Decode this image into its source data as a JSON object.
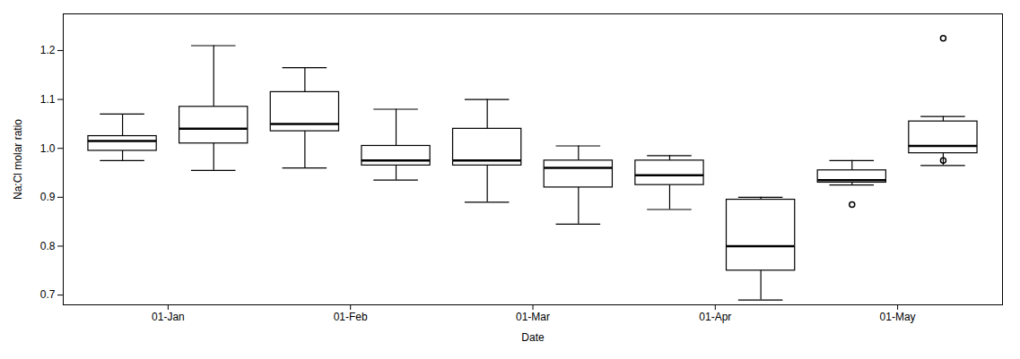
{
  "chart_data": {
    "type": "box",
    "xlabel": "Date",
    "ylabel": "Na:Cl molar ratio",
    "x": [
      1.5,
      2.5,
      3.5,
      4.5,
      5.5,
      6.5,
      7.5,
      8.5,
      9.5,
      10.5
    ],
    "boxes": [
      {
        "whislo": 0.975,
        "q1": 0.995,
        "med": 1.015,
        "q3": 1.025,
        "whishi": 1.07,
        "fliers": []
      },
      {
        "whislo": 0.955,
        "q1": 1.01,
        "med": 1.04,
        "q3": 1.085,
        "whishi": 1.21,
        "fliers": []
      },
      {
        "whislo": 0.96,
        "q1": 1.035,
        "med": 1.05,
        "q3": 1.115,
        "whishi": 1.165,
        "fliers": []
      },
      {
        "whislo": 0.935,
        "q1": 0.965,
        "med": 0.975,
        "q3": 1.005,
        "whishi": 1.08,
        "fliers": []
      },
      {
        "whislo": 0.89,
        "q1": 0.965,
        "med": 0.975,
        "q3": 1.04,
        "whishi": 1.1,
        "fliers": []
      },
      {
        "whislo": 0.845,
        "q1": 0.92,
        "med": 0.96,
        "q3": 0.975,
        "whishi": 1.005,
        "fliers": []
      },
      {
        "whislo": 0.875,
        "q1": 0.925,
        "med": 0.945,
        "q3": 0.975,
        "whishi": 0.985,
        "fliers": []
      },
      {
        "whislo": 0.69,
        "q1": 0.75,
        "med": 0.8,
        "q3": 0.895,
        "whishi": 0.9,
        "fliers": []
      },
      {
        "whislo": 0.925,
        "q1": 0.93,
        "med": 0.935,
        "q3": 0.955,
        "whishi": 0.975,
        "fliers": [
          0.885
        ]
      },
      {
        "whislo": 0.965,
        "q1": 0.99,
        "med": 1.005,
        "q3": 1.055,
        "whishi": 1.065,
        "fliers": [
          0.975,
          1.225
        ]
      }
    ],
    "xlim": [
      0.85,
      11.15
    ],
    "xticks": [
      {
        "value": 2,
        "label": "01-Jan"
      },
      {
        "value": 4,
        "label": "01-Feb"
      },
      {
        "value": 6,
        "label": "01-Mar"
      },
      {
        "value": 8,
        "label": "01-Apr"
      },
      {
        "value": 10,
        "label": "01-May"
      }
    ],
    "ylim": [
      0.68,
      1.275
    ],
    "yticks": [
      0.7,
      0.8,
      0.9,
      {
        "value": 1,
        "label": "1.0"
      },
      1.1,
      1.2
    ]
  }
}
